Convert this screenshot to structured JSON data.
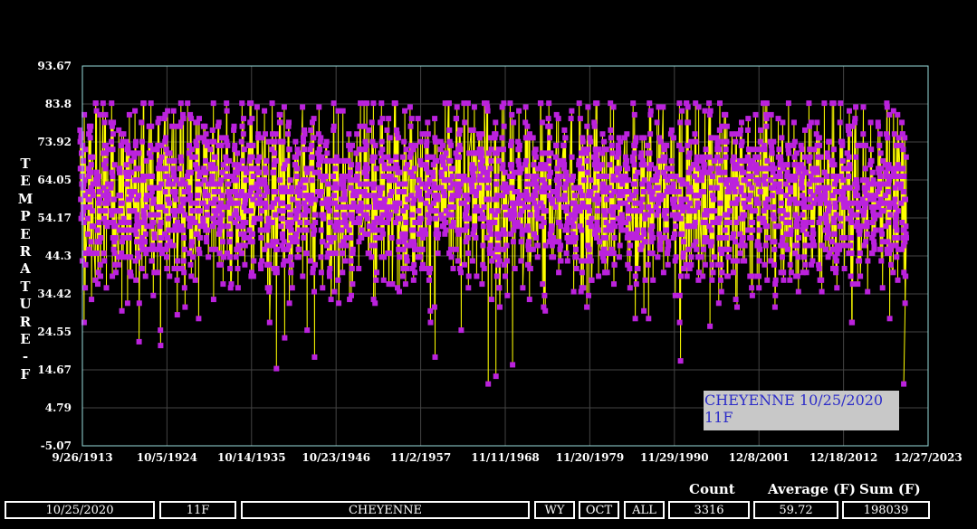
{
  "chart_data": {
    "type": "line",
    "ylabel": "TEMPERATURE-F",
    "ylim": [
      -5.07,
      93.67
    ],
    "y_ticks": [
      "93.67",
      "83.8",
      "73.92",
      "64.05",
      "54.17",
      "44.3",
      "34.42",
      "24.55",
      "14.67",
      "4.79",
      "-5.07"
    ],
    "x_ticks": [
      "9/26/1913",
      "10/5/1924",
      "10/14/1935",
      "10/23/1946",
      "11/2/1957",
      "11/11/1968",
      "11/20/1979",
      "11/29/1990",
      "12/8/2001",
      "12/18/2012",
      "12/27/2023"
    ],
    "xlim": [
      "9/26/1913",
      "12/27/2023"
    ],
    "grid": true,
    "point_count": 3316,
    "y_min": 11,
    "y_max": 84,
    "highlight": {
      "date": "10/25/2020",
      "value": 11
    },
    "colors": {
      "point": "#bb22dd",
      "line": "#ffff00",
      "axis": "#99dddd",
      "grid": "#444444"
    }
  },
  "tooltip": {
    "text": "CHEYENNE 10/25/2020 11F"
  },
  "stats": {
    "headers": {
      "count": "Count",
      "average": "Average (F)",
      "sum": "Sum (F)"
    },
    "date": "10/25/2020",
    "temp": "11F",
    "station": "CHEYENNE",
    "state": "WY",
    "month": "OCT",
    "filter": "ALL",
    "count": "3316",
    "average": "59.72",
    "sum": "198039"
  }
}
